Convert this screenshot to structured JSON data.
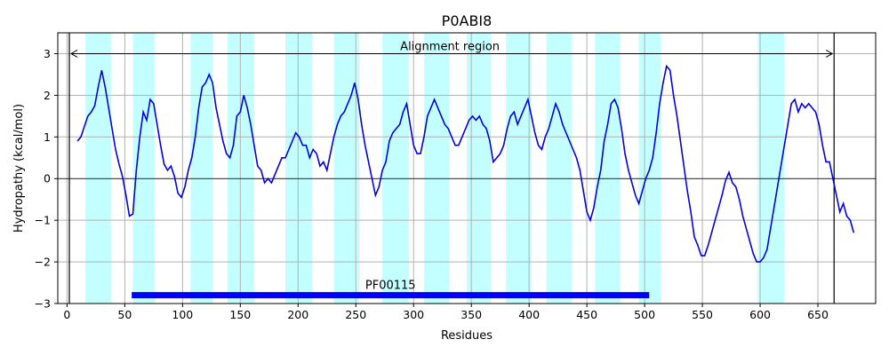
{
  "chart_data": {
    "type": "line",
    "title": "P0ABI8",
    "xlabel": "Residues",
    "ylabel": "Hydropathy (kcal/mol)",
    "xlim": [
      -8,
      700
    ],
    "ylim": [
      -3,
      3.5
    ],
    "xticks": [
      0,
      50,
      100,
      150,
      200,
      250,
      300,
      350,
      400,
      450,
      500,
      550,
      600,
      650
    ],
    "yticks": [
      -3,
      -2,
      -1,
      0,
      1,
      2,
      3
    ],
    "grid": true,
    "colors": {
      "line": "#0000ee",
      "band": "#c4ffff",
      "domain_bar": "#0000ff",
      "grid": "#b0b0b0"
    },
    "region_lines": [
      2,
      664
    ],
    "alignment_region": {
      "label": "Alignment region",
      "start": 2,
      "end": 664,
      "y": 3.0
    },
    "domain": {
      "label": "PF00115",
      "start": 56,
      "end": 504,
      "y": -2.8
    },
    "tm_segments": [
      [
        16,
        38
      ],
      [
        57,
        76
      ],
      [
        107,
        126
      ],
      [
        139,
        162
      ],
      [
        189,
        212
      ],
      [
        231,
        253
      ],
      [
        273,
        296
      ],
      [
        309,
        331
      ],
      [
        346,
        367
      ],
      [
        380,
        402
      ],
      [
        415,
        437
      ],
      [
        457,
        479
      ],
      [
        495,
        514
      ],
      [
        598,
        621
      ]
    ],
    "series": [
      {
        "values": [
          [
            9,
            0.9
          ],
          [
            12,
            1.0
          ],
          [
            15,
            1.25
          ],
          [
            18,
            1.5
          ],
          [
            21,
            1.6
          ],
          [
            24,
            1.75
          ],
          [
            27,
            2.2
          ],
          [
            30,
            2.6
          ],
          [
            33,
            2.2
          ],
          [
            36,
            1.7
          ],
          [
            39,
            1.2
          ],
          [
            42,
            0.7
          ],
          [
            45,
            0.35
          ],
          [
            48,
            0.05
          ],
          [
            51,
            -0.4
          ],
          [
            54,
            -0.9
          ],
          [
            57,
            -0.85
          ],
          [
            60,
            0.2
          ],
          [
            63,
            1.0
          ],
          [
            66,
            1.6
          ],
          [
            69,
            1.4
          ],
          [
            72,
            1.9
          ],
          [
            75,
            1.8
          ],
          [
            78,
            1.3
          ],
          [
            81,
            0.8
          ],
          [
            84,
            0.35
          ],
          [
            87,
            0.2
          ],
          [
            90,
            0.3
          ],
          [
            93,
            0.05
          ],
          [
            96,
            -0.35
          ],
          [
            99,
            -0.45
          ],
          [
            102,
            -0.2
          ],
          [
            105,
            0.2
          ],
          [
            108,
            0.5
          ],
          [
            111,
            1.0
          ],
          [
            114,
            1.7
          ],
          [
            117,
            2.2
          ],
          [
            120,
            2.3
          ],
          [
            123,
            2.5
          ],
          [
            126,
            2.3
          ],
          [
            129,
            1.7
          ],
          [
            132,
            1.3
          ],
          [
            135,
            0.9
          ],
          [
            138,
            0.6
          ],
          [
            141,
            0.5
          ],
          [
            144,
            0.8
          ],
          [
            147,
            1.5
          ],
          [
            150,
            1.6
          ],
          [
            153,
            2.0
          ],
          [
            156,
            1.7
          ],
          [
            159,
            1.3
          ],
          [
            162,
            0.8
          ],
          [
            165,
            0.3
          ],
          [
            168,
            0.2
          ],
          [
            171,
            -0.1
          ],
          [
            174,
            0.0
          ],
          [
            177,
            -0.1
          ],
          [
            180,
            0.1
          ],
          [
            183,
            0.3
          ],
          [
            186,
            0.5
          ],
          [
            189,
            0.5
          ],
          [
            192,
            0.7
          ],
          [
            195,
            0.9
          ],
          [
            198,
            1.1
          ],
          [
            201,
            1.0
          ],
          [
            204,
            0.8
          ],
          [
            207,
            0.8
          ],
          [
            210,
            0.5
          ],
          [
            213,
            0.7
          ],
          [
            216,
            0.6
          ],
          [
            219,
            0.3
          ],
          [
            222,
            0.4
          ],
          [
            225,
            0.2
          ],
          [
            228,
            0.6
          ],
          [
            231,
            1.0
          ],
          [
            234,
            1.3
          ],
          [
            237,
            1.5
          ],
          [
            240,
            1.6
          ],
          [
            243,
            1.8
          ],
          [
            246,
            2.0
          ],
          [
            249,
            2.3
          ],
          [
            252,
            1.9
          ],
          [
            255,
            1.3
          ],
          [
            258,
            0.8
          ],
          [
            261,
            0.4
          ],
          [
            264,
            0.0
          ],
          [
            267,
            -0.4
          ],
          [
            270,
            -0.2
          ],
          [
            273,
            0.2
          ],
          [
            276,
            0.4
          ],
          [
            279,
            0.9
          ],
          [
            282,
            1.1
          ],
          [
            285,
            1.2
          ],
          [
            288,
            1.3
          ],
          [
            291,
            1.6
          ],
          [
            294,
            1.8
          ],
          [
            297,
            1.3
          ],
          [
            300,
            0.8
          ],
          [
            303,
            0.6
          ],
          [
            306,
            0.6
          ],
          [
            309,
            1.0
          ],
          [
            312,
            1.5
          ],
          [
            315,
            1.7
          ],
          [
            318,
            1.9
          ],
          [
            321,
            1.7
          ],
          [
            324,
            1.5
          ],
          [
            327,
            1.3
          ],
          [
            330,
            1.2
          ],
          [
            333,
            1.0
          ],
          [
            336,
            0.8
          ],
          [
            339,
            0.8
          ],
          [
            342,
            1.0
          ],
          [
            345,
            1.2
          ],
          [
            348,
            1.4
          ],
          [
            351,
            1.5
          ],
          [
            354,
            1.4
          ],
          [
            357,
            1.5
          ],
          [
            360,
            1.3
          ],
          [
            363,
            1.2
          ],
          [
            366,
            0.9
          ],
          [
            369,
            0.4
          ],
          [
            372,
            0.5
          ],
          [
            375,
            0.6
          ],
          [
            378,
            0.8
          ],
          [
            381,
            1.2
          ],
          [
            384,
            1.5
          ],
          [
            387,
            1.6
          ],
          [
            390,
            1.3
          ],
          [
            393,
            1.5
          ],
          [
            396,
            1.7
          ],
          [
            399,
            1.9
          ],
          [
            402,
            1.5
          ],
          [
            405,
            1.1
          ],
          [
            408,
            0.8
          ],
          [
            411,
            0.7
          ],
          [
            414,
            1.0
          ],
          [
            417,
            1.2
          ],
          [
            420,
            1.5
          ],
          [
            423,
            1.8
          ],
          [
            426,
            1.6
          ],
          [
            429,
            1.3
          ],
          [
            432,
            1.1
          ],
          [
            435,
            0.9
          ],
          [
            438,
            0.7
          ],
          [
            441,
            0.5
          ],
          [
            444,
            0.2
          ],
          [
            447,
            -0.3
          ],
          [
            450,
            -0.8
          ],
          [
            453,
            -1.0
          ],
          [
            456,
            -0.7
          ],
          [
            459,
            -0.2
          ],
          [
            462,
            0.2
          ],
          [
            465,
            0.9
          ],
          [
            468,
            1.3
          ],
          [
            471,
            1.8
          ],
          [
            474,
            1.9
          ],
          [
            477,
            1.7
          ],
          [
            480,
            1.2
          ],
          [
            483,
            0.6
          ],
          [
            486,
            0.2
          ],
          [
            489,
            -0.1
          ],
          [
            492,
            -0.4
          ],
          [
            495,
            -0.6
          ],
          [
            498,
            -0.3
          ],
          [
            501,
            0.0
          ],
          [
            504,
            0.2
          ],
          [
            507,
            0.5
          ],
          [
            510,
            1.1
          ],
          [
            513,
            1.8
          ],
          [
            516,
            2.3
          ],
          [
            519,
            2.7
          ],
          [
            522,
            2.6
          ],
          [
            525,
            2.0
          ],
          [
            528,
            1.5
          ],
          [
            531,
            0.9
          ],
          [
            534,
            0.3
          ],
          [
            537,
            -0.3
          ],
          [
            540,
            -0.8
          ],
          [
            543,
            -1.4
          ],
          [
            546,
            -1.6
          ],
          [
            549,
            -1.85
          ],
          [
            552,
            -1.85
          ],
          [
            555,
            -1.6
          ],
          [
            558,
            -1.3
          ],
          [
            561,
            -1.0
          ],
          [
            564,
            -0.7
          ],
          [
            567,
            -0.4
          ],
          [
            570,
            -0.05
          ],
          [
            573,
            0.15
          ],
          [
            576,
            -0.1
          ],
          [
            579,
            -0.2
          ],
          [
            582,
            -0.5
          ],
          [
            585,
            -0.9
          ],
          [
            588,
            -1.2
          ],
          [
            591,
            -1.5
          ],
          [
            594,
            -1.8
          ],
          [
            597,
            -2.0
          ],
          [
            600,
            -2.0
          ],
          [
            603,
            -1.9
          ],
          [
            606,
            -1.7
          ],
          [
            609,
            -1.2
          ],
          [
            612,
            -0.7
          ],
          [
            615,
            -0.2
          ],
          [
            618,
            0.3
          ],
          [
            621,
            0.8
          ],
          [
            624,
            1.3
          ],
          [
            627,
            1.8
          ],
          [
            630,
            1.9
          ],
          [
            633,
            1.6
          ],
          [
            636,
            1.8
          ],
          [
            639,
            1.7
          ],
          [
            642,
            1.8
          ],
          [
            645,
            1.7
          ],
          [
            648,
            1.6
          ],
          [
            651,
            1.3
          ],
          [
            654,
            0.8
          ],
          [
            657,
            0.4
          ],
          [
            660,
            0.4
          ],
          [
            663,
            0.0
          ],
          [
            666,
            -0.4
          ],
          [
            669,
            -0.8
          ],
          [
            672,
            -0.6
          ],
          [
            675,
            -0.9
          ],
          [
            678,
            -1.0
          ],
          [
            681,
            -1.3
          ]
        ]
      }
    ]
  }
}
